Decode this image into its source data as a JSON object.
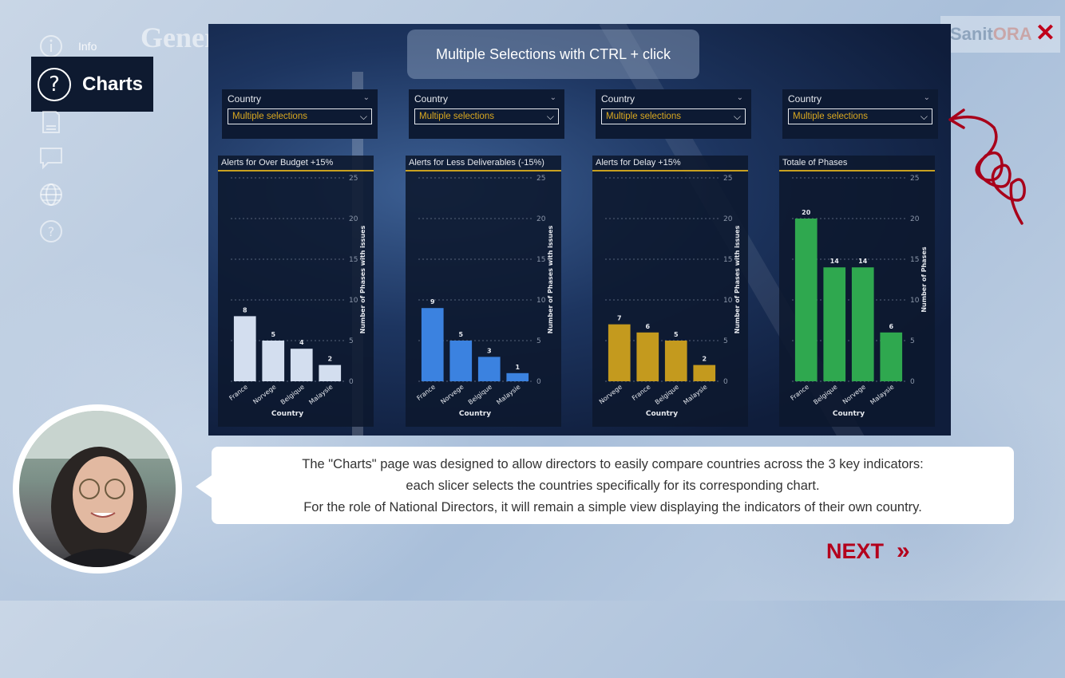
{
  "sidebar": {
    "info_label": "Info",
    "active_item": {
      "label": "Charts",
      "icon": "question-circle-icon"
    },
    "rail_icons": [
      "info-icon",
      "document-icon",
      "chat-icon",
      "globe-icon",
      "question-icon"
    ],
    "background_word": "Gener"
  },
  "logo": {
    "part1": "Sanit",
    "part2": "ORA",
    "close": "✕"
  },
  "dashboard": {
    "tooltip": "Multiple Selections with CTRL + click",
    "slicers": [
      {
        "title": "Country",
        "value": "Multiple selections"
      },
      {
        "title": "Country",
        "value": "Multiple selections"
      },
      {
        "title": "Country",
        "value": "Multiple selections"
      },
      {
        "title": "Country",
        "value": "Multiple selections"
      }
    ]
  },
  "chart_data": [
    {
      "type": "bar",
      "title": "Alerts for Over Budget +15%",
      "xlabel": "Country",
      "ylabel": "Number of Phases with issues",
      "categories": [
        "France",
        "Norvege",
        "Belgique",
        "Malaysie"
      ],
      "values": [
        8,
        5,
        4,
        2
      ],
      "ylim": [
        0,
        25
      ],
      "yticks": [
        0,
        5,
        10,
        15,
        20,
        25
      ],
      "color": "#d3deef"
    },
    {
      "type": "bar",
      "title": "Alerts for Less Deliverables (-15%)",
      "xlabel": "Country",
      "ylabel": "Number of Phases with issues",
      "categories": [
        "France",
        "Norvege",
        "Belgique",
        "Malaysie"
      ],
      "values": [
        9,
        5,
        3,
        1
      ],
      "ylim": [
        0,
        25
      ],
      "yticks": [
        0,
        5,
        10,
        15,
        20,
        25
      ],
      "color": "#3b82e0"
    },
    {
      "type": "bar",
      "title": "Alerts for Delay +15%",
      "xlabel": "Country",
      "ylabel": "Number of Phases with issues",
      "categories": [
        "Norvege",
        "France",
        "Belgique",
        "Malaysie"
      ],
      "values": [
        7,
        6,
        5,
        2
      ],
      "ylim": [
        0,
        25
      ],
      "yticks": [
        0,
        5,
        10,
        15,
        20,
        25
      ],
      "color": "#c49a1e"
    },
    {
      "type": "bar",
      "title": "Totale of Phases",
      "xlabel": "Country",
      "ylabel": "Number of Phases",
      "categories": [
        "France",
        "Belgique",
        "Norvege",
        "Malaysie"
      ],
      "values": [
        20,
        14,
        14,
        6
      ],
      "ylim": [
        0,
        25
      ],
      "yticks": [
        0,
        5,
        10,
        15,
        20,
        25
      ],
      "color": "#2fa84f"
    }
  ],
  "bubble": {
    "line1": "The \"Charts\" page was designed to allow directors to easily compare countries across the 3 key indicators:",
    "line2": "each slicer selects the countries specifically for its corresponding chart.",
    "line3": "For the role of National Directors, it will remain a simple view displaying the indicators of their own country."
  },
  "next_label": "NEXT",
  "next_chevron": "»",
  "colors": {
    "accent_red": "#b4001c",
    "panel_dark": "#0e1a30",
    "slicer_value": "#d9a820"
  }
}
